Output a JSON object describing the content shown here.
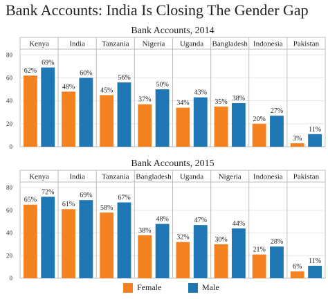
{
  "title": "Bank Accounts: India Is Closing The Gender Gap",
  "colors": {
    "female": "#f58220",
    "male": "#1f78b4"
  },
  "legend": {
    "female_label": "Female",
    "male_label": "Male"
  },
  "chart_data": [
    {
      "type": "bar",
      "title": "Bank Accounts, 2014",
      "categories": [
        "Kenya",
        "India",
        "Tanzania",
        "Nigeria",
        "Uganda",
        "Bangladesh",
        "Indonesia",
        "Pakistan"
      ],
      "series": [
        {
          "name": "Female",
          "values": [
            62,
            48,
            45,
            37,
            34,
            35,
            20,
            3
          ]
        },
        {
          "name": "Male",
          "values": [
            69,
            60,
            56,
            50,
            43,
            38,
            27,
            11
          ]
        }
      ],
      "ylim": [
        0,
        85
      ],
      "yticks": [
        0,
        20,
        40,
        60,
        80
      ],
      "value_suffix": "%"
    },
    {
      "type": "bar",
      "title": "Bank Accounts, 2015",
      "categories": [
        "Kenya",
        "India",
        "Tanzania",
        "Bangladesh",
        "Uganda",
        "Nigeria",
        "Indonesia",
        "Pakistan"
      ],
      "series": [
        {
          "name": "Female",
          "values": [
            65,
            61,
            58,
            38,
            32,
            30,
            21,
            6
          ]
        },
        {
          "name": "Male",
          "values": [
            72,
            69,
            67,
            48,
            47,
            44,
            28,
            11
          ]
        }
      ],
      "ylim": [
        0,
        85
      ],
      "yticks": [
        0,
        20,
        40,
        60,
        80
      ],
      "value_suffix": "%"
    }
  ]
}
